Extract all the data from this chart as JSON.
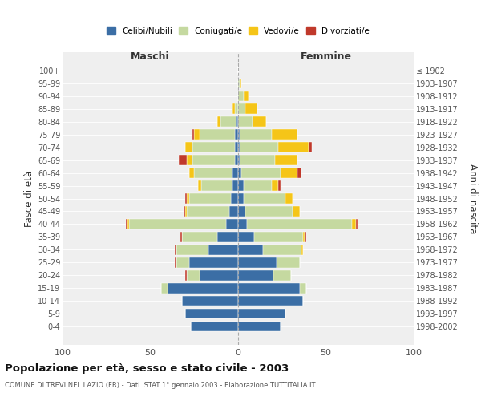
{
  "age_groups": [
    "0-4",
    "5-9",
    "10-14",
    "15-19",
    "20-24",
    "25-29",
    "30-34",
    "35-39",
    "40-44",
    "45-49",
    "50-54",
    "55-59",
    "60-64",
    "65-69",
    "70-74",
    "75-79",
    "80-84",
    "85-89",
    "90-94",
    "95-99",
    "100+"
  ],
  "birth_years": [
    "1998-2002",
    "1993-1997",
    "1988-1992",
    "1983-1987",
    "1978-1982",
    "1973-1977",
    "1968-1972",
    "1963-1967",
    "1958-1962",
    "1953-1957",
    "1948-1952",
    "1943-1947",
    "1938-1942",
    "1933-1937",
    "1928-1932",
    "1923-1927",
    "1918-1922",
    "1913-1917",
    "1908-1912",
    "1903-1907",
    "≤ 1902"
  ],
  "males": {
    "celibi": [
      27,
      30,
      32,
      40,
      22,
      28,
      17,
      12,
      7,
      5,
      4,
      3,
      3,
      2,
      2,
      2,
      1,
      0,
      0,
      0,
      0
    ],
    "coniugati": [
      0,
      0,
      0,
      4,
      7,
      7,
      18,
      20,
      55,
      24,
      24,
      18,
      22,
      24,
      24,
      20,
      9,
      2,
      0,
      0,
      0
    ],
    "vedovi": [
      0,
      0,
      0,
      0,
      0,
      0,
      0,
      0,
      1,
      1,
      1,
      2,
      3,
      3,
      4,
      3,
      2,
      1,
      0,
      0,
      0
    ],
    "divorziati": [
      0,
      0,
      0,
      0,
      1,
      1,
      1,
      1,
      1,
      1,
      1,
      0,
      0,
      5,
      0,
      1,
      0,
      0,
      0,
      0,
      0
    ]
  },
  "females": {
    "nubili": [
      24,
      27,
      37,
      35,
      20,
      22,
      14,
      9,
      5,
      4,
      3,
      3,
      2,
      1,
      1,
      1,
      0,
      0,
      0,
      0,
      0
    ],
    "coniugate": [
      0,
      0,
      0,
      4,
      10,
      13,
      22,
      28,
      60,
      27,
      24,
      16,
      22,
      20,
      22,
      18,
      8,
      4,
      3,
      1,
      0
    ],
    "vedove": [
      0,
      0,
      0,
      0,
      0,
      0,
      1,
      1,
      2,
      4,
      4,
      4,
      10,
      13,
      17,
      15,
      8,
      7,
      3,
      1,
      0
    ],
    "divorziate": [
      0,
      0,
      0,
      0,
      0,
      0,
      0,
      1,
      1,
      0,
      0,
      1,
      2,
      0,
      2,
      0,
      0,
      0,
      0,
      0,
      0
    ]
  },
  "colors": {
    "celibi": "#3b6ea5",
    "coniugati": "#c5d9a0",
    "vedovi": "#f5c518",
    "divorziati": "#c0392b"
  },
  "title": "Popolazione per età, sesso e stato civile - 2003",
  "subtitle": "COMUNE DI TREVI NEL LAZIO (FR) - Dati ISTAT 1° gennaio 2003 - Elaborazione TUTTITALIA.IT",
  "xlabel_left": "Maschi",
  "xlabel_right": "Femmine",
  "ylabel_left": "Fasce di età",
  "ylabel_right": "Anni di nascita",
  "xlim": 100,
  "legend_labels": [
    "Celibi/Nubili",
    "Coniugati/e",
    "Vedovi/e",
    "Divorziati/e"
  ],
  "bg_color": "#ffffff",
  "plot_bg_color": "#efefef"
}
